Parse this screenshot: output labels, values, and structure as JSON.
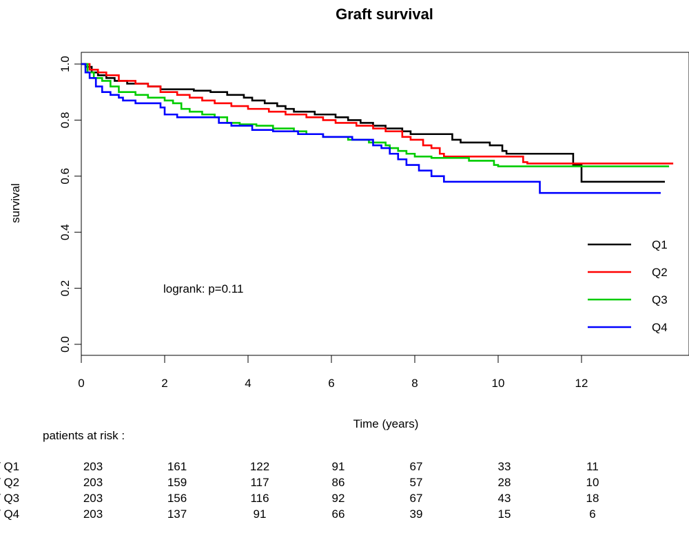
{
  "chart_data": {
    "type": "line",
    "title": "Graft survival",
    "xlabel": "Time (years)",
    "ylabel": "survival",
    "xlim": [
      0,
      14
    ],
    "ylim": [
      0,
      1.0
    ],
    "x_ticks": [
      0,
      2,
      4,
      6,
      8,
      10,
      12
    ],
    "y_ticks": [
      "0.0",
      "0.2",
      "0.4",
      "0.6",
      "0.8",
      "1.0"
    ],
    "grid": false,
    "legend_position": "bottom-right",
    "annotation": "logrank: p=0.11",
    "series": [
      {
        "name": "Q1",
        "color": "#000000",
        "points": [
          [
            0,
            1.0
          ],
          [
            0.1,
            0.99
          ],
          [
            0.25,
            0.97
          ],
          [
            0.4,
            0.96
          ],
          [
            0.6,
            0.95
          ],
          [
            0.8,
            0.94
          ],
          [
            1.1,
            0.93
          ],
          [
            1.6,
            0.92
          ],
          [
            1.9,
            0.91
          ],
          [
            2.7,
            0.905
          ],
          [
            3.1,
            0.9
          ],
          [
            3.5,
            0.89
          ],
          [
            3.9,
            0.88
          ],
          [
            4.1,
            0.87
          ],
          [
            4.4,
            0.86
          ],
          [
            4.7,
            0.85
          ],
          [
            4.9,
            0.84
          ],
          [
            5.1,
            0.83
          ],
          [
            5.6,
            0.82
          ],
          [
            6.1,
            0.81
          ],
          [
            6.4,
            0.8
          ],
          [
            6.7,
            0.79
          ],
          [
            7.0,
            0.78
          ],
          [
            7.3,
            0.77
          ],
          [
            7.7,
            0.76
          ],
          [
            7.9,
            0.75
          ],
          [
            8.9,
            0.73
          ],
          [
            9.1,
            0.72
          ],
          [
            9.8,
            0.71
          ],
          [
            10.1,
            0.69
          ],
          [
            10.2,
            0.68
          ],
          [
            11.8,
            0.64
          ],
          [
            12.0,
            0.58
          ],
          [
            14.0,
            0.58
          ]
        ]
      },
      {
        "name": "Q2",
        "color": "#ff0000",
        "points": [
          [
            0,
            1.0
          ],
          [
            0.2,
            0.98
          ],
          [
            0.4,
            0.97
          ],
          [
            0.6,
            0.96
          ],
          [
            0.9,
            0.94
          ],
          [
            1.3,
            0.93
          ],
          [
            1.6,
            0.92
          ],
          [
            1.9,
            0.9
          ],
          [
            2.3,
            0.89
          ],
          [
            2.6,
            0.88
          ],
          [
            2.9,
            0.87
          ],
          [
            3.2,
            0.86
          ],
          [
            3.6,
            0.85
          ],
          [
            4.0,
            0.84
          ],
          [
            4.5,
            0.83
          ],
          [
            4.9,
            0.82
          ],
          [
            5.4,
            0.81
          ],
          [
            5.8,
            0.8
          ],
          [
            6.1,
            0.79
          ],
          [
            6.6,
            0.78
          ],
          [
            7.0,
            0.77
          ],
          [
            7.3,
            0.76
          ],
          [
            7.7,
            0.74
          ],
          [
            7.9,
            0.73
          ],
          [
            8.2,
            0.71
          ],
          [
            8.4,
            0.7
          ],
          [
            8.6,
            0.68
          ],
          [
            8.7,
            0.67
          ],
          [
            10.6,
            0.65
          ],
          [
            10.7,
            0.645
          ],
          [
            14.2,
            0.645
          ]
        ]
      },
      {
        "name": "Q3",
        "color": "#00cc00",
        "points": [
          [
            0,
            1.0
          ],
          [
            0.15,
            0.97
          ],
          [
            0.3,
            0.95
          ],
          [
            0.5,
            0.94
          ],
          [
            0.7,
            0.92
          ],
          [
            0.9,
            0.9
          ],
          [
            1.3,
            0.89
          ],
          [
            1.6,
            0.88
          ],
          [
            2.0,
            0.87
          ],
          [
            2.2,
            0.86
          ],
          [
            2.4,
            0.84
          ],
          [
            2.6,
            0.83
          ],
          [
            2.9,
            0.82
          ],
          [
            3.2,
            0.81
          ],
          [
            3.5,
            0.79
          ],
          [
            3.8,
            0.785
          ],
          [
            4.2,
            0.78
          ],
          [
            4.6,
            0.77
          ],
          [
            5.1,
            0.76
          ],
          [
            5.4,
            0.75
          ],
          [
            5.8,
            0.74
          ],
          [
            6.4,
            0.73
          ],
          [
            6.9,
            0.72
          ],
          [
            7.3,
            0.71
          ],
          [
            7.4,
            0.7
          ],
          [
            7.6,
            0.69
          ],
          [
            7.8,
            0.68
          ],
          [
            8.0,
            0.67
          ],
          [
            8.4,
            0.665
          ],
          [
            9.3,
            0.655
          ],
          [
            9.9,
            0.64
          ],
          [
            10.0,
            0.635
          ],
          [
            14.1,
            0.635
          ]
        ]
      },
      {
        "name": "Q4",
        "color": "#0000ff",
        "points": [
          [
            0,
            1.0
          ],
          [
            0.1,
            0.97
          ],
          [
            0.2,
            0.95
          ],
          [
            0.35,
            0.92
          ],
          [
            0.5,
            0.9
          ],
          [
            0.7,
            0.89
          ],
          [
            0.9,
            0.88
          ],
          [
            1.0,
            0.87
          ],
          [
            1.3,
            0.86
          ],
          [
            1.9,
            0.845
          ],
          [
            2.0,
            0.82
          ],
          [
            2.3,
            0.81
          ],
          [
            3.3,
            0.79
          ],
          [
            3.6,
            0.78
          ],
          [
            4.1,
            0.765
          ],
          [
            4.6,
            0.76
          ],
          [
            5.2,
            0.75
          ],
          [
            5.8,
            0.74
          ],
          [
            6.5,
            0.73
          ],
          [
            7.0,
            0.71
          ],
          [
            7.2,
            0.7
          ],
          [
            7.4,
            0.68
          ],
          [
            7.6,
            0.66
          ],
          [
            7.8,
            0.64
          ],
          [
            8.1,
            0.62
          ],
          [
            8.4,
            0.6
          ],
          [
            8.7,
            0.58
          ],
          [
            10.0,
            0.58
          ],
          [
            10.9,
            0.58
          ],
          [
            11.0,
            0.54
          ],
          [
            13.9,
            0.54
          ]
        ]
      }
    ]
  },
  "risk_table": {
    "header": "patients at risk :",
    "rows": [
      {
        "label": "/ Q1",
        "values": [
          "203",
          "161",
          "122",
          "91",
          "67",
          "33",
          "11"
        ]
      },
      {
        "label": "/ Q2",
        "values": [
          "203",
          "159",
          "117",
          "86",
          "57",
          "28",
          "10"
        ]
      },
      {
        "label": "/ Q3",
        "values": [
          "203",
          "156",
          "116",
          "92",
          "67",
          "43",
          "18"
        ]
      },
      {
        "label": "/ Q4",
        "values": [
          "203",
          "137",
          "91",
          "66",
          "39",
          "15",
          "6"
        ]
      }
    ]
  }
}
